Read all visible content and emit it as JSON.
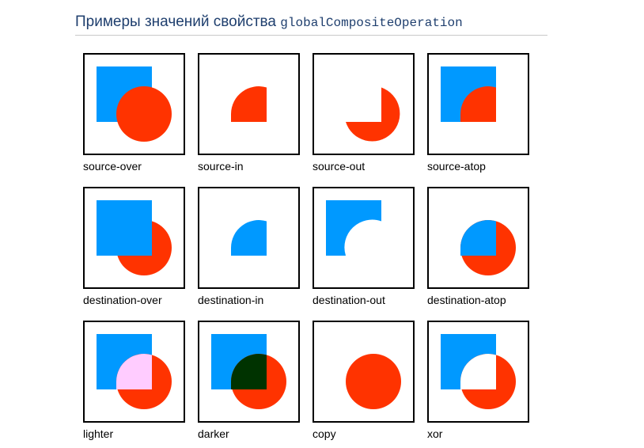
{
  "heading": {
    "text": "Примеры значений свойства ",
    "code": "globalCompositeOperation"
  },
  "colors": {
    "square": "#0099ff",
    "circle": "#ff3300",
    "lighter_overlap": "#ffccff",
    "darker_overlap": "#003300"
  },
  "examples": [
    {
      "id": "source-over",
      "label": "source-over"
    },
    {
      "id": "source-in",
      "label": "source-in"
    },
    {
      "id": "source-out",
      "label": "source-out"
    },
    {
      "id": "source-atop",
      "label": "source-atop"
    },
    {
      "id": "destination-over",
      "label": "destination-over"
    },
    {
      "id": "destination-in",
      "label": "destination-in"
    },
    {
      "id": "destination-out",
      "label": "destination-out"
    },
    {
      "id": "destination-atop",
      "label": "destination-atop"
    },
    {
      "id": "lighter",
      "label": "lighter"
    },
    {
      "id": "darker",
      "label": "darker"
    },
    {
      "id": "copy",
      "label": "copy"
    },
    {
      "id": "xor",
      "label": "xor"
    }
  ]
}
